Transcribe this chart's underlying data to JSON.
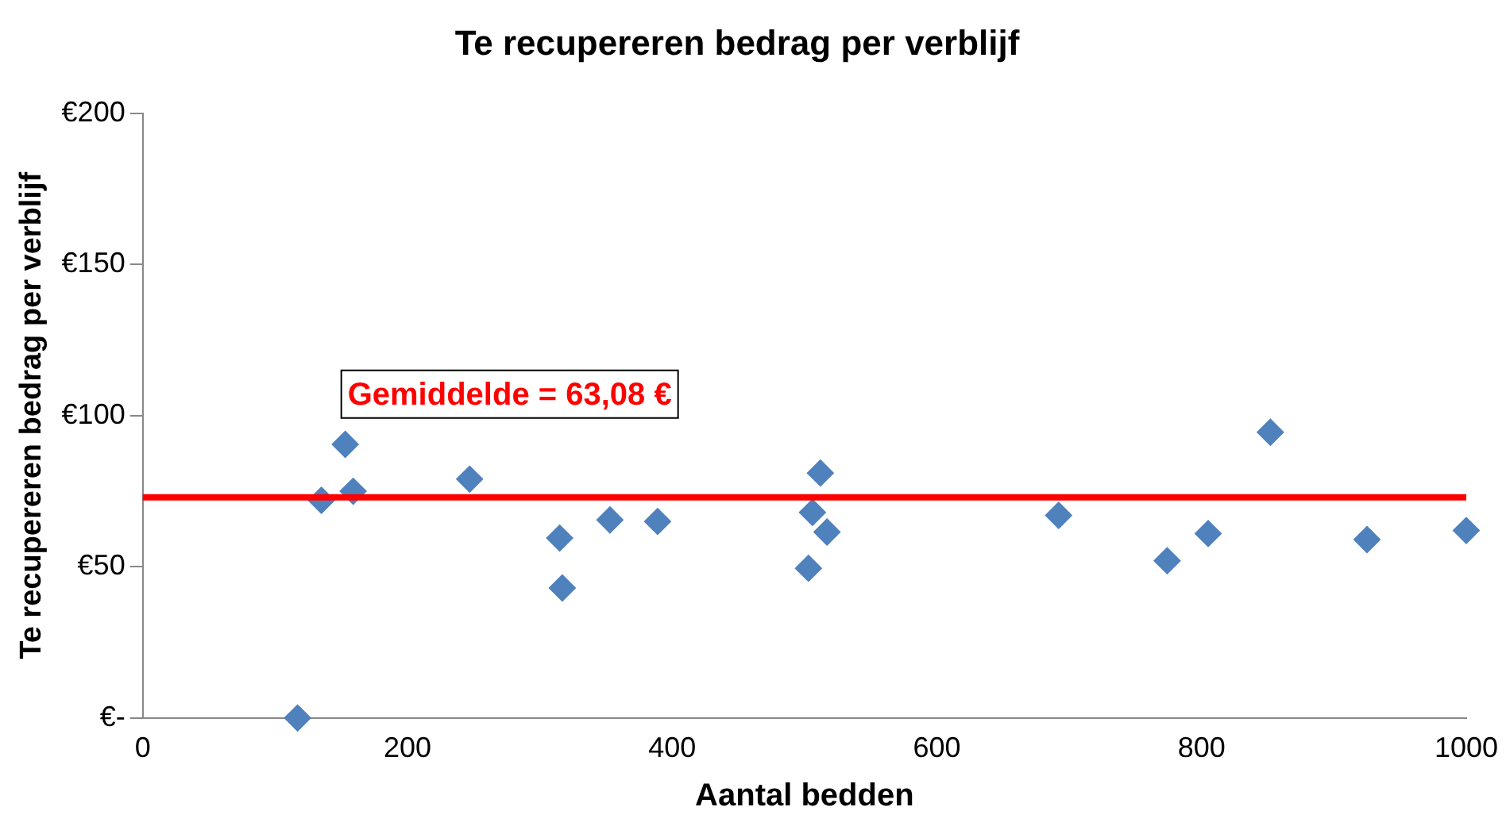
{
  "chart_data": {
    "type": "scatter",
    "title": "Te recupereren bedrag per verblijf",
    "xlabel": "Aantal bedden",
    "ylabel": "Te recupereren bedrag per verblijf",
    "x": [
      117,
      135,
      153,
      159,
      247,
      315,
      317,
      353,
      389,
      503,
      506,
      512,
      517,
      692,
      774,
      805,
      852,
      925,
      1000
    ],
    "series": [
      {
        "color": "#4f81bd",
        "values": [
          0,
          72,
          90.5,
          75,
          79,
          59.5,
          43,
          65.5,
          65,
          49.5,
          68,
          81,
          61.5,
          67,
          52,
          61,
          94.5,
          59,
          62
        ]
      }
    ],
    "xlim": [
      0,
      1000
    ],
    "xticks": [
      0,
      200,
      400,
      600,
      800,
      1000
    ],
    "ylim": [
      0,
      200
    ],
    "yticks": [
      {
        "value": 0,
        "label": "€-"
      },
      {
        "value": 50,
        "label": "€50"
      },
      {
        "value": 100,
        "label": "€100"
      },
      {
        "value": 150,
        "label": "€150"
      },
      {
        "value": 200,
        "label": "€200"
      }
    ],
    "ref_lines": [
      {
        "axis": "y",
        "value": 73,
        "color": "#ff0000"
      }
    ],
    "annotations": [
      "Gemiddelde = 63,08 €"
    ],
    "marker": "diamond",
    "grid": false,
    "legend": false
  }
}
